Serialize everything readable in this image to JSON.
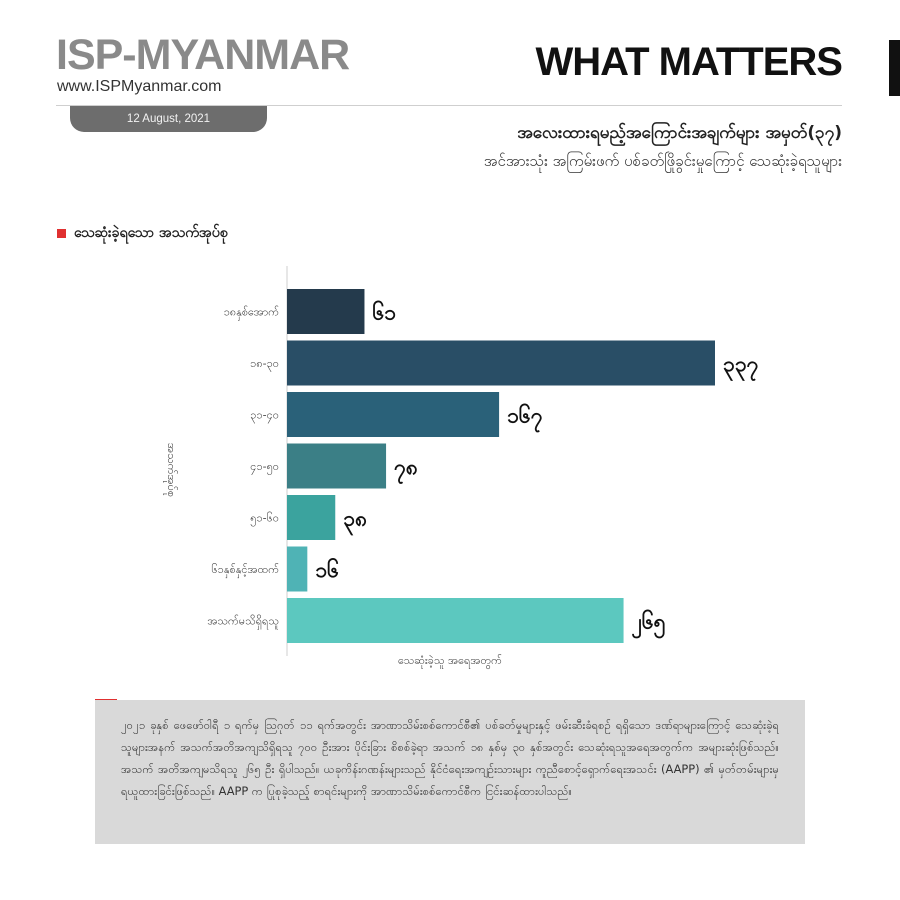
{
  "header": {
    "brand": "ISP-MYANMAR",
    "brand_url": "www.ISPMyanmar.com",
    "section": "WHAT MATTERS",
    "date": "12 August, 2021"
  },
  "titles": {
    "line1": "အလေးထားရမည့်အကြောင်းအချက်များ အမှတ်(၃၇)",
    "line2": "အင်အားသုံး အကြမ်းဖက် ပစ်ခတ်ဖြိုခွင်းမှုကြောင့် သေဆုံးခဲ့ရသူများ"
  },
  "legend": {
    "label": "သေဆုံးခဲ့ရသော အသက်အုပ်စု",
    "color": "#e03030"
  },
  "chart_data": {
    "type": "bar",
    "orientation": "horizontal",
    "categories": [
      "၁၈နှစ်အောက်",
      "၁၈-၃၀",
      "၃၁-၄၀",
      "၄၁-၅၀",
      "၅၁-၆၀",
      "၆၁နှစ်နှင့်အထက်",
      "အသက်မသိရှိရသူ"
    ],
    "values": [
      61,
      337,
      167,
      78,
      38,
      16,
      265
    ],
    "value_labels": [
      "၆၁",
      "၃၃၇",
      "၁၆၇",
      "၇၈",
      "၃၈",
      "၁၆",
      "၂၆၅"
    ],
    "colors": [
      "#243a4c",
      "#294e66",
      "#2a6179",
      "#3b7f86",
      "#3ba39e",
      "#4fb3b5",
      "#5cc8bf"
    ],
    "xlabel": "သေဆုံးခဲ့သူ အရေအတွက်",
    "ylabel": "အသက်အုပ်စု",
    "xlim": [
      0,
      337
    ],
    "grid": false
  },
  "note": {
    "text": "၂၀၂၁ ခုနှစ် ဖေဖော်ဝါရီ ၁ ရက်မှ ဩဂုတ် ၁၁ ရက်အတွင်း အာဏာသိမ်းစစ်ကောင်စီ၏ ပစ်ခတ်မှုများနှင့် ဖမ်းဆီးခံရစဉ် ရရှိသော ဒဏ်ရာများကြောင့် သေဆုံးခဲ့ရသူများအနက် အသက်အတိအကျသိရှိရသူ ၇၀၀ ဦးအား ပိုင်းခြား စိစစ်ခဲ့ရာ အသက် ၁၈ နှစ်မှ ၃၀ နှစ်အတွင်း သေဆုံးရသူအရေအတွက်က အများဆုံးဖြစ်သည်။ အသက် အတိအကျမသိရသူ ၂၆၅ ဦး ရှိပါသည်။ ယခုကိန်းဂဏန်းများသည် နိုင်ငံရေးအကျဉ်းသားများ ကူညီစောင့်ရှောက်ရေးအသင်း (AAPP) ၏ မှတ်တမ်းများမှ ရယူထားခြင်းဖြစ်သည်။ AAPP က ပြုစုခဲ့သည့် စာရင်းများကို အာဏာသိမ်းစစ်ကောင်စီက ငြင်းဆန်ထားပါသည်။"
  }
}
